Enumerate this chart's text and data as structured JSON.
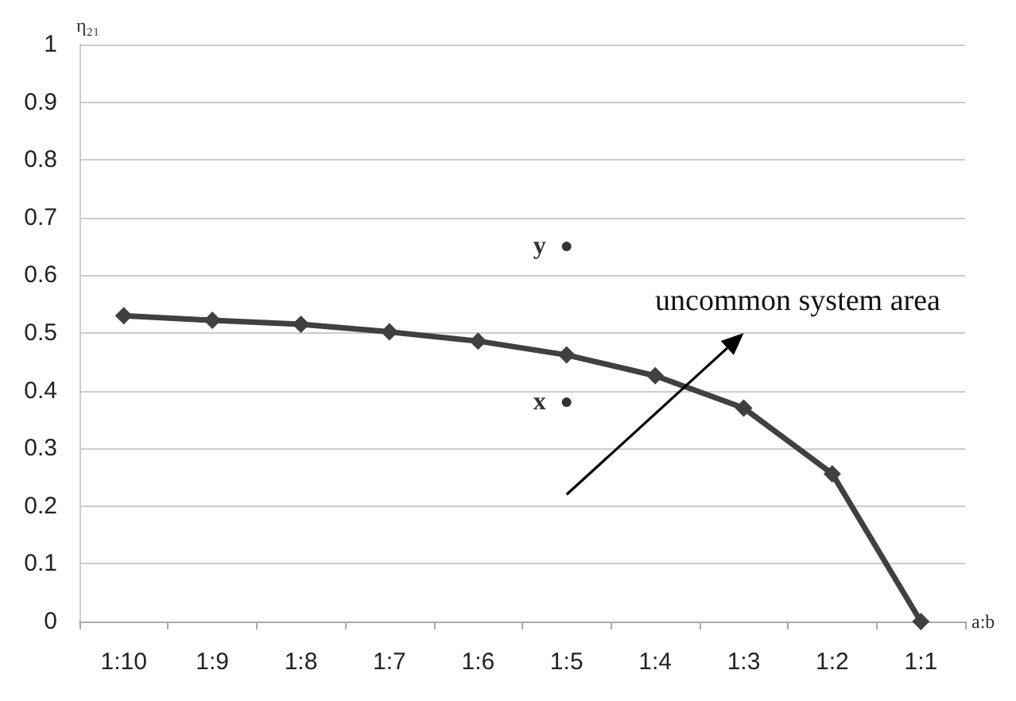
{
  "chart_data": {
    "type": "line",
    "xlabel": "a:b",
    "ylabel": "η₂₁",
    "categories": [
      "1:10",
      "1:9",
      "1:8",
      "1:7",
      "1:6",
      "1:5",
      "1:4",
      "1:3",
      "1:2",
      "1:1"
    ],
    "series": [
      {
        "color": "#404040",
        "values": [
          0.53,
          0.522,
          0.515,
          0.502,
          0.486,
          0.462,
          0.426,
          0.37,
          0.256,
          0
        ]
      },
      {
        "name": "y",
        "type": "scatter",
        "marker": "circle",
        "color": "#000000",
        "x": [
          "1:5"
        ],
        "values": [
          0.65
        ]
      },
      {
        "name": "x",
        "type": "scatter",
        "marker": "circle",
        "color": "#000000",
        "x": [
          "1:5"
        ],
        "values": [
          0.38
        ]
      }
    ],
    "annotations": [
      "uncommon system area"
    ],
    "ylim": [
      0,
      1
    ],
    "yticks": [
      0,
      0.1,
      0.2,
      0.3,
      0.4,
      0.5,
      0.6,
      0.7,
      0.8,
      0.9,
      1
    ],
    "grid": "y",
    "legend": false,
    "marker": "diamond",
    "line_style": "solid"
  }
}
